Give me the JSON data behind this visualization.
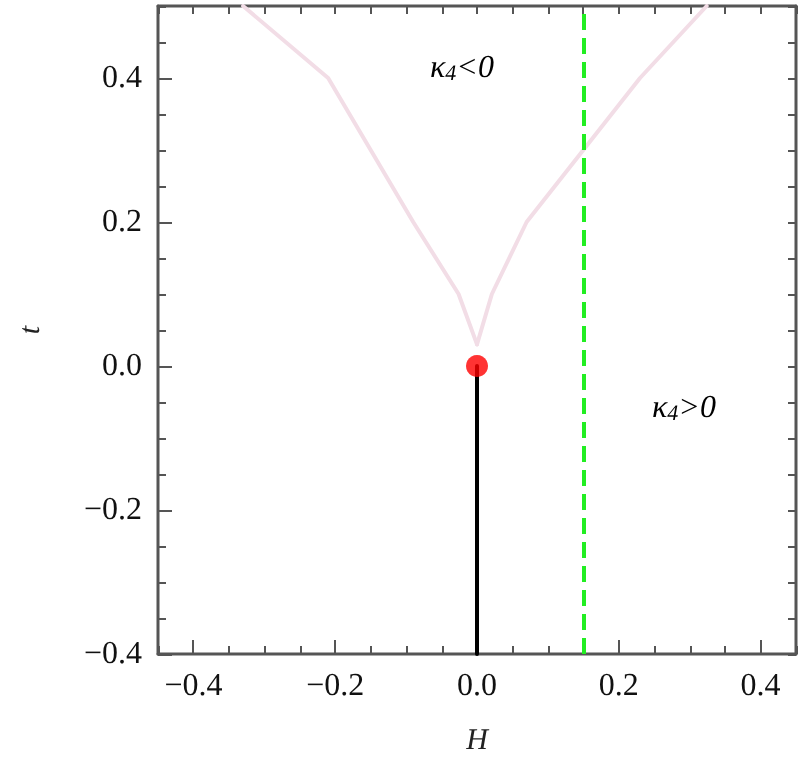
{
  "chart_data": {
    "type": "line",
    "xlabel": "H",
    "ylabel": "t",
    "xlim": [
      -0.45,
      0.45
    ],
    "ylim": [
      -0.4,
      0.5
    ],
    "xticks": [
      -0.4,
      -0.2,
      {
        "value": 0,
        "label": "0.0"
      },
      0.2,
      0.4
    ],
    "yticks": [
      -0.4,
      -0.2,
      {
        "value": 0,
        "label": "0.0"
      },
      0.2,
      0.4
    ],
    "grid": false,
    "marker": "none",
    "line_style": "solid",
    "series": [
      {
        "color": "#f2dde6",
        "x": [
          -0.33,
          -0.21,
          -0.09,
          -0.026,
          0.0
        ],
        "values": [
          0.5,
          0.4,
          0.2,
          0.1,
          0.03
        ]
      },
      {
        "color": "#f2dde6",
        "x": [
          0.0,
          0.021,
          0.07,
          0.15,
          0.23,
          0.324
        ],
        "values": [
          0.03,
          0.1,
          0.2,
          0.3,
          0.4,
          0.5
        ]
      },
      {
        "color": "#000000",
        "x": [
          0.0,
          0.0
        ],
        "values": [
          -0.4,
          0.0
        ]
      },
      {
        "type": "scatter",
        "marker": "circle",
        "color": "#ff0000",
        "x": [
          0.0
        ],
        "values": [
          0.0
        ]
      }
    ],
    "ref_lines": [
      {
        "axis": "x",
        "value": 0.15,
        "label": null,
        "color": "#22ee22",
        "line_style": "dashed"
      }
    ],
    "annotations": [
      "κ$_{4}$<0",
      "κ$_{4}$>0"
    ]
  }
}
